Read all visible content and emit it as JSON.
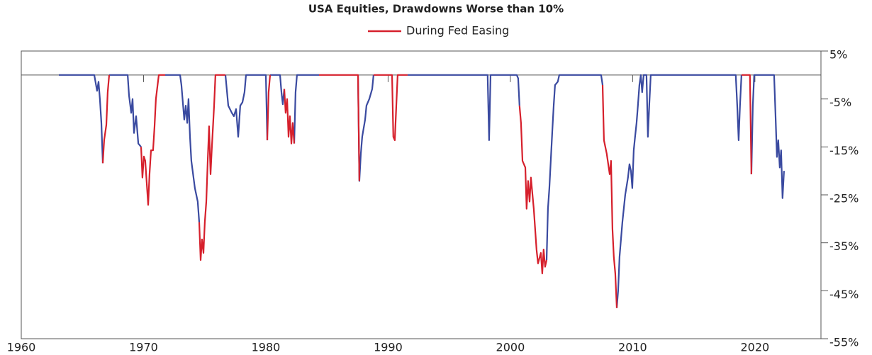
{
  "chart_data": {
    "type": "line",
    "title": "USA Equities, Drawdowns Worse than 10%",
    "x": [
      1963.07,
      1965.97,
      1966.2,
      1966.32,
      1966.43,
      1966.55,
      1966.67,
      1966.78,
      1966.96,
      1967.07,
      1967.19,
      1968.7,
      1968.81,
      1968.99,
      1969.1,
      1969.22,
      1969.39,
      1969.57,
      1969.8,
      1969.91,
      1970.03,
      1970.14,
      1970.38,
      1970.49,
      1970.61,
      1970.78,
      1970.9,
      1971.01,
      1971.25,
      1971.77,
      1972.99,
      1973.1,
      1973.33,
      1973.45,
      1973.57,
      1973.68,
      1973.8,
      1973.91,
      1974.2,
      1974.43,
      1974.55,
      1974.67,
      1974.78,
      1974.9,
      1975.01,
      1975.13,
      1975.25,
      1975.36,
      1975.48,
      1975.59,
      1975.77,
      1975.88,
      1976.7,
      1976.93,
      1977.22,
      1977.39,
      1977.57,
      1977.74,
      1977.91,
      1978.09,
      1978.26,
      1978.38,
      1980,
      1980.12,
      1980.23,
      1980.35,
      1981.16,
      1981.28,
      1981.39,
      1981.51,
      1981.62,
      1981.74,
      1981.86,
      1981.97,
      1982.09,
      1982.2,
      1982.32,
      1982.43,
      1982.55,
      1984.35,
      1985.8,
      1987.25,
      1987.54,
      1987.65,
      1987.77,
      1987.88,
      1988.12,
      1988.23,
      1988.46,
      1988.7,
      1988.81,
      1990.32,
      1990.43,
      1990.55,
      1990.67,
      1990.78,
      1991.59,
      1998.14,
      1998.26,
      1998.38,
      2000.52,
      2000.64,
      2000.75,
      2000.87,
      2000.99,
      2001.22,
      2001.33,
      2001.45,
      2001.57,
      2001.68,
      2001.91,
      2002.14,
      2002.26,
      2002.49,
      2002.61,
      2002.72,
      2002.84,
      2002.96,
      2003.07,
      2003.19,
      2003.42,
      2003.54,
      2003.65,
      2003.88,
      2004,
      2007.42,
      2007.54,
      2007.65,
      2007.88,
      2008.12,
      2008.23,
      2008.35,
      2008.46,
      2008.58,
      2008.7,
      2008.81,
      2008.93,
      2009.16,
      2009.39,
      2009.62,
      2009.74,
      2009.86,
      2009.97,
      2010.09,
      2010.2,
      2010.32,
      2010.43,
      2010.55,
      2010.67,
      2010.78,
      2010.9,
      2011.13,
      2011.25,
      2011.36,
      2011.48,
      2018.43,
      2018.55,
      2018.67,
      2018.78,
      2018.9,
      2019.59,
      2019.71,
      2019.83,
      2019.94,
      2021.57,
      2021.68,
      2021.8,
      2021.91,
      2022.03,
      2022.14,
      2022.26,
      2022.38
    ],
    "series": [
      {
        "color": "#3a4aa0",
        "values": [
          0,
          0,
          -3.3,
          -1.4,
          -5,
          -10,
          -18.4,
          null,
          null,
          null,
          0,
          0,
          -4.3,
          -7.9,
          -5,
          -12.1,
          -8.6,
          -14.3,
          -15,
          null,
          null,
          null,
          null,
          null,
          null,
          null,
          null,
          null,
          null,
          0,
          0,
          -2.1,
          -9.3,
          -6.4,
          -10,
          -5,
          -12.9,
          -17.9,
          -23.6,
          -26.4,
          -30.7,
          null,
          null,
          null,
          null,
          null,
          null,
          null,
          null,
          null,
          null,
          null,
          0,
          -6.4,
          -7.9,
          -8.6,
          -7.1,
          -12.9,
          -6.4,
          -5.7,
          -3.6,
          0,
          0,
          -13.6,
          null,
          0,
          0,
          -3.6,
          -6.1,
          -2.9,
          null,
          null,
          null,
          null,
          null,
          null,
          -14.3,
          -3.6,
          0,
          0,
          null,
          null,
          0,
          -22.1,
          -16.4,
          -12.9,
          -9.3,
          -6.4,
          -5,
          -2.9,
          0,
          null,
          null,
          null,
          null,
          null,
          0,
          0,
          -13.6,
          0,
          0,
          -0.7,
          -6.4,
          null,
          null,
          null,
          null,
          null,
          null,
          null,
          null,
          null,
          null,
          null,
          null,
          null,
          null,
          -38.6,
          -27.9,
          -23.6,
          -12.1,
          -6.4,
          -2.1,
          -1.4,
          0,
          0,
          -2.1,
          null,
          null,
          null,
          null,
          null,
          null,
          null,
          -48.6,
          -45,
          -37.9,
          -30.7,
          -25,
          -21.4,
          -18.6,
          -20,
          -23.6,
          -15.7,
          -12.9,
          -10,
          -6.4,
          -2.1,
          0,
          -3.6,
          0,
          0,
          -12.9,
          -6.4,
          0,
          0,
          -6.4,
          -13.6,
          -6.4,
          0,
          null,
          -20.7,
          -6.4,
          0,
          0,
          -7.9,
          -17.1,
          -13.6,
          -19.3,
          -15.7,
          -25.7,
          -20
        ]
      },
      {
        "name": "During Fed Easing",
        "color": "#d6202c",
        "values": [
          null,
          null,
          null,
          null,
          null,
          null,
          -18.4,
          -13.6,
          -10.4,
          -3.6,
          0,
          null,
          null,
          null,
          null,
          null,
          null,
          null,
          -15,
          -21.4,
          -17,
          -17.9,
          -27.1,
          -20.7,
          -15.7,
          -15.7,
          -10.7,
          -5,
          0,
          0,
          null,
          null,
          null,
          null,
          null,
          null,
          null,
          null,
          null,
          null,
          -30.7,
          -38.6,
          -34.3,
          -37.1,
          -30.7,
          -26.4,
          -17.9,
          -10.7,
          -20.7,
          -15,
          -6.4,
          0,
          0,
          null,
          null,
          null,
          null,
          null,
          null,
          null,
          null,
          null,
          null,
          -13.6,
          -3.6,
          0,
          null,
          null,
          null,
          -2.9,
          -7.9,
          -5,
          -12.9,
          -8.6,
          -14.3,
          -10,
          -14.3,
          null,
          null,
          0,
          0,
          0,
          0,
          -22.1,
          null,
          null,
          null,
          null,
          null,
          null,
          0,
          0,
          -12.9,
          -13.6,
          -6.4,
          0,
          0,
          null,
          null,
          null,
          null,
          null,
          -6.4,
          -10,
          -17.9,
          -19.3,
          -27.9,
          -22.1,
          -26.4,
          -21.4,
          -27.9,
          -36.4,
          -39.3,
          -37.1,
          -41.4,
          -36.4,
          -40,
          -38.6,
          null,
          null,
          null,
          null,
          null,
          null,
          null,
          null,
          -2.1,
          -13.6,
          -16.4,
          -20.7,
          -17.9,
          -32.1,
          -37.9,
          -41.4,
          -48.6,
          null,
          null,
          null,
          null,
          null,
          null,
          null,
          null,
          null,
          null,
          null,
          null,
          null,
          null,
          null,
          null,
          null,
          null,
          null,
          null,
          null,
          null,
          null,
          null,
          0,
          0,
          -20.7,
          null,
          null,
          null,
          null,
          null,
          null,
          null,
          null,
          null,
          null
        ]
      }
    ],
    "xlim": [
      1960,
      2025.4
    ],
    "xticks": [
      1960,
      1970,
      1980,
      1990,
      2000,
      2010,
      2020
    ],
    "ylim": [
      -55,
      5
    ],
    "yticks": [
      {
        "value": 5,
        "label": "5%"
      },
      {
        "value": -5,
        "label": "-5%"
      },
      {
        "value": -15,
        "label": "-15%"
      },
      {
        "value": -25,
        "label": "-25%"
      },
      {
        "value": -35,
        "label": "-35%"
      },
      {
        "value": -45,
        "label": "-45%"
      },
      {
        "value": -55,
        "label": "-55%"
      }
    ],
    "legend": "top"
  }
}
